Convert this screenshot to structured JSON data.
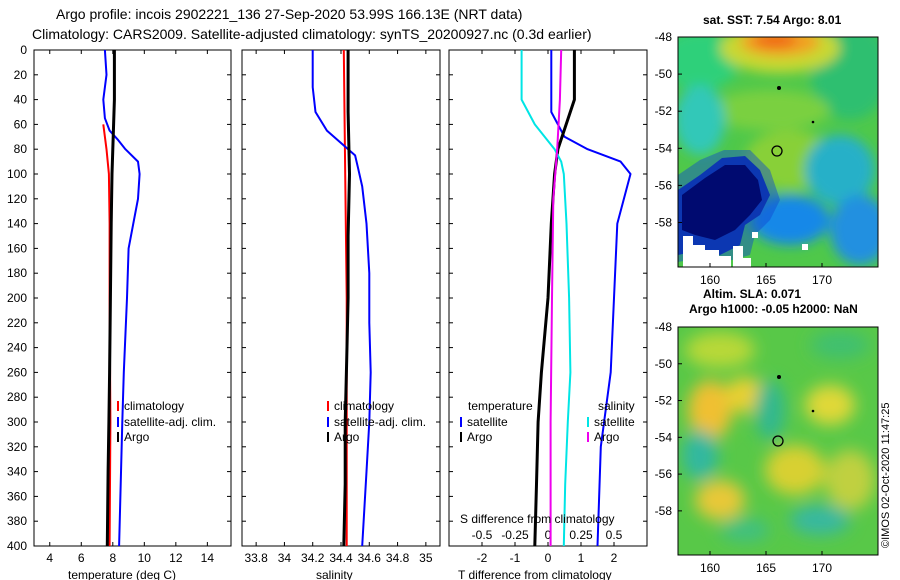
{
  "title_line1": "Argo profile: incois 2902221_136 27-Sep-2020 53.99S 166.13E (NRT data)",
  "title_line2": "Climatology: CARS2009. Satellite-adjusted climatology: synTS_20200927.nc (0.3d earlier)",
  "colors": {
    "climatology": "#ff0000",
    "satellite": "#0000ff",
    "argo": "#000000",
    "cyan": "#00e5e5",
    "magenta": "#ee00ee"
  },
  "chart_data": [
    {
      "type": "line",
      "panel": "temperature",
      "xlabel": "temperature (deg C)",
      "xlim": [
        3,
        15.5
      ],
      "xticks": [
        4,
        6,
        8,
        10,
        12,
        14
      ],
      "ylim": [
        0,
        400
      ],
      "yticks": [
        0,
        20,
        40,
        60,
        80,
        100,
        120,
        140,
        160,
        180,
        200,
        220,
        240,
        260,
        280,
        300,
        320,
        340,
        360,
        380,
        400
      ],
      "legend": [
        "climatology",
        "satellite-adj. clim.",
        "Argo"
      ],
      "series": [
        {
          "name": "climatology",
          "color": "#ff0000",
          "depth": [
            60,
            80,
            100,
            140,
            200,
            300,
            400
          ],
          "values": [
            7.4,
            7.6,
            7.75,
            7.8,
            7.8,
            7.85,
            7.8
          ]
        },
        {
          "name": "satellite-adj. clim.",
          "color": "#0000ff",
          "depth": [
            0,
            20,
            40,
            55,
            65,
            72,
            80,
            90,
            100,
            120,
            140,
            160,
            200,
            260,
            300,
            350,
            400
          ],
          "values": [
            7.5,
            7.6,
            7.4,
            7.5,
            7.8,
            8.3,
            8.8,
            9.6,
            9.7,
            9.6,
            9.3,
            9.0,
            8.9,
            8.7,
            8.6,
            8.5,
            8.4
          ]
        },
        {
          "name": "Argo",
          "color": "#000000",
          "depth": [
            0,
            40,
            80,
            100,
            140,
            200,
            260,
            300,
            340,
            400
          ],
          "values": [
            8.1,
            8.1,
            8.0,
            7.95,
            7.9,
            7.85,
            7.8,
            7.75,
            7.7,
            7.65
          ]
        }
      ]
    },
    {
      "type": "line",
      "panel": "salinity",
      "xlabel": "salinity",
      "xlim": [
        33.7,
        35.1
      ],
      "xticks": [
        33.8,
        34,
        34.2,
        34.4,
        34.6,
        34.8,
        35
      ],
      "xticklabels": [
        "33.8",
        "34",
        "34.2",
        "34.4",
        "34.6",
        "34.8",
        "35"
      ],
      "ylim": [
        0,
        400
      ],
      "legend": [
        "climatology",
        "satellite-adj. clim.",
        "Argo"
      ],
      "series": [
        {
          "name": "climatology",
          "color": "#ff0000",
          "depth": [
            0,
            100,
            200,
            300,
            400
          ],
          "values": [
            34.42,
            34.43,
            34.44,
            34.44,
            34.44
          ]
        },
        {
          "name": "satellite-adj. clim.",
          "color": "#0000ff",
          "depth": [
            0,
            30,
            50,
            65,
            75,
            85,
            95,
            110,
            140,
            180,
            220,
            260,
            300,
            340,
            400
          ],
          "values": [
            34.2,
            34.2,
            34.22,
            34.3,
            34.4,
            34.5,
            34.52,
            34.55,
            34.58,
            34.6,
            34.6,
            34.61,
            34.6,
            34.58,
            34.55
          ]
        },
        {
          "name": "Argo",
          "color": "#000000",
          "depth": [
            0,
            50,
            100,
            150,
            200,
            250,
            300,
            350,
            400
          ],
          "values": [
            34.45,
            34.45,
            34.46,
            34.45,
            34.45,
            34.44,
            34.43,
            34.43,
            34.42
          ]
        }
      ]
    },
    {
      "type": "line",
      "panel": "difference",
      "xlabel": "T difference from climatology",
      "xlabel_top": "S difference from climatology",
      "xlim": [
        -3,
        3
      ],
      "xticks": [
        -2,
        -1,
        0,
        1,
        2
      ],
      "xticks_top": [
        -0.5,
        -0.25,
        0,
        0.25,
        0.5
      ],
      "xticklabels_top": [
        "-0.5",
        "-0.25",
        "0",
        "0.25",
        "0.5"
      ],
      "ylim": [
        0,
        400
      ],
      "legend_left_title": "temperature",
      "legend_right_title": "salinity",
      "legend": [
        "satellite",
        "Argo",
        "satellite",
        "Argo"
      ],
      "series": [
        {
          "name": "T satellite",
          "color": "#0000ff",
          "depth": [
            0,
            50,
            70,
            80,
            90,
            100,
            140,
            200,
            260,
            320,
            400
          ],
          "values": [
            0.1,
            0.1,
            0.5,
            1.2,
            2.2,
            2.5,
            2.1,
            2.0,
            1.9,
            1.6,
            1.5
          ]
        },
        {
          "name": "T Argo",
          "color": "#000000",
          "depth": [
            0,
            40,
            80,
            100,
            140,
            200,
            260,
            300,
            350,
            400
          ],
          "values": [
            0.8,
            0.8,
            0.3,
            0.2,
            0.1,
            0.0,
            -0.2,
            -0.3,
            -0.35,
            -0.4
          ]
        },
        {
          "name": "S satellite",
          "color": "#00e5e5",
          "depth": [
            0,
            40,
            60,
            80,
            90,
            100,
            140,
            200,
            260,
            300,
            350,
            400
          ],
          "values": [
            -0.2,
            -0.2,
            -0.1,
            0.05,
            0.1,
            0.12,
            0.14,
            0.16,
            0.17,
            0.15,
            0.13,
            0.12
          ]
        },
        {
          "name": "S Argo",
          "color": "#ee00ee",
          "depth": [
            0,
            40,
            80,
            120,
            200,
            300,
            400
          ],
          "values": [
            0.1,
            0.09,
            0.07,
            0.04,
            0.03,
            0.02,
            0.02
          ]
        }
      ]
    }
  ],
  "maps": {
    "sst": {
      "title": "sat. SST: 7.54 Argo: 8.01",
      "yticks": [
        "-48",
        "-50",
        "-52",
        "-54",
        "-56",
        "-58"
      ],
      "xticks": [
        "160",
        "165",
        "170"
      ]
    },
    "sla": {
      "title1": "Altim. SLA: 0.071",
      "title2": "Argo h1000: -0.05 h2000: NaN",
      "yticks": [
        "-48",
        "-50",
        "-52",
        "-54",
        "-56",
        "-58"
      ],
      "xticks": [
        "160",
        "165",
        "170"
      ]
    }
  },
  "stamp": "©IMOS 02-Oct-2020 11:47:25"
}
